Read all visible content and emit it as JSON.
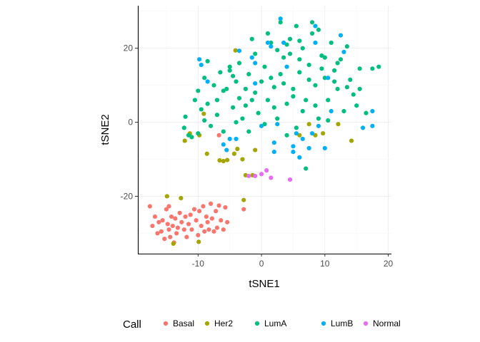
{
  "chart_data": {
    "type": "scatter",
    "xlabel": "tSNE1",
    "ylabel": "tSNE2",
    "xlim": [
      -19.5,
      20.5
    ],
    "ylim": [
      -35.5,
      31.5
    ],
    "xticks": [
      -10,
      0,
      10,
      20
    ],
    "yticks": [
      -20,
      0,
      20
    ],
    "xtick_labels": [
      "-10",
      "0",
      "10",
      "20"
    ],
    "ytick_labels": [
      "-20",
      "0",
      "20"
    ],
    "grid": true,
    "legend": {
      "title": "Call",
      "position": "bottom"
    },
    "series": [
      {
        "name": "Basal",
        "color": "#F8766D",
        "points": [
          [
            -17.6,
            -22.7
          ],
          [
            -17.2,
            -28.0
          ],
          [
            -16.8,
            -25.5
          ],
          [
            -16.4,
            -30.0
          ],
          [
            -16.2,
            -27.0
          ],
          [
            -15.8,
            -29.5
          ],
          [
            -15.6,
            -26.5
          ],
          [
            -15.3,
            -31.5
          ],
          [
            -15.0,
            -23.5
          ],
          [
            -14.8,
            -27.5
          ],
          [
            -14.6,
            -29.0
          ],
          [
            -14.6,
            -22.7
          ],
          [
            -14.4,
            -31.0
          ],
          [
            -14.2,
            -25.5
          ],
          [
            -14.0,
            -28.0
          ],
          [
            -13.8,
            -32.5
          ],
          [
            -13.6,
            -26.0
          ],
          [
            -13.4,
            -30.0
          ],
          [
            -13.2,
            -28.5
          ],
          [
            -12.9,
            -24.5
          ],
          [
            -12.6,
            -27.0
          ],
          [
            -12.2,
            -29.0
          ],
          [
            -12.0,
            -25.5
          ],
          [
            -11.8,
            -31.0
          ],
          [
            -11.5,
            -27.5
          ],
          [
            -11.2,
            -25.0
          ],
          [
            -11.0,
            -29.0
          ],
          [
            -10.6,
            -23.5
          ],
          [
            -10.3,
            -26.5
          ],
          [
            -10.0,
            -30.5
          ],
          [
            -9.8,
            -24.0
          ],
          [
            -9.5,
            -28.0
          ],
          [
            -9.2,
            -22.7
          ],
          [
            -9.0,
            -29.5
          ],
          [
            -8.7,
            -25.5
          ],
          [
            -8.5,
            -27.0
          ],
          [
            -8.3,
            -29.0
          ],
          [
            -8.0,
            -22.0
          ],
          [
            -7.8,
            -26.0
          ],
          [
            -7.5,
            -29.5
          ],
          [
            -7.2,
            -24.0
          ],
          [
            -7.0,
            -28.5
          ],
          [
            -6.7,
            -22.5
          ],
          [
            -6.4,
            -26.5
          ],
          [
            -6.0,
            -29.0
          ],
          [
            -5.7,
            -23.0
          ],
          [
            -5.4,
            -27.0
          ],
          [
            -2.8,
            -23.5
          ],
          [
            -6.7,
            -3.5
          ]
        ]
      },
      {
        "name": "Her2",
        "color": "#A3A500",
        "points": [
          [
            -14.9,
            -20.0
          ],
          [
            -13.9,
            -32.8
          ],
          [
            -12.7,
            -20.5
          ],
          [
            -9.9,
            -32.3
          ],
          [
            -2.8,
            -21.0
          ],
          [
            -12.1,
            -5.0
          ],
          [
            -9.1,
            2.3
          ],
          [
            -8.6,
            -8.5
          ],
          [
            -6.6,
            -10.3
          ],
          [
            -6.0,
            -10.5
          ],
          [
            -5.4,
            -10.2
          ],
          [
            -4.3,
            -8.5
          ],
          [
            -4.1,
            19.4
          ],
          [
            -3.8,
            -7.2
          ],
          [
            -3.0,
            -10.0
          ],
          [
            -2.5,
            -14.3
          ],
          [
            -1.4,
            -14.3
          ],
          [
            -9.8,
            -3.5
          ],
          [
            -1.0,
            -7.5
          ],
          [
            7.5,
            -0.5
          ],
          [
            8.5,
            -3.5
          ],
          [
            9.7,
            -3.0
          ],
          [
            12.1,
            -0.5
          ],
          [
            14.2,
            -5.0
          ],
          [
            6.0,
            -3.5
          ],
          [
            -11.3,
            -3.0
          ]
        ]
      },
      {
        "name": "LumA",
        "color": "#00BF7D",
        "points": [
          [
            -12.0,
            1.5
          ],
          [
            -11.5,
            -3.5
          ],
          [
            -10.5,
            6.0
          ],
          [
            -10.0,
            8.5
          ],
          [
            -9.5,
            3.5
          ],
          [
            -9.0,
            12.0
          ],
          [
            -8.5,
            16.5
          ],
          [
            -8.0,
            -1.0
          ],
          [
            -7.5,
            10.0
          ],
          [
            -7.0,
            6.0
          ],
          [
            -6.5,
            13.5
          ],
          [
            -6.0,
            -2.5
          ],
          [
            -5.5,
            9.0
          ],
          [
            -5.0,
            14.0
          ],
          [
            -4.5,
            4.0
          ],
          [
            -4.0,
            11.0
          ],
          [
            -3.5,
            16.0
          ],
          [
            -3.0,
            1.0
          ],
          [
            -2.5,
            9.0
          ],
          [
            -2.0,
            13.0
          ],
          [
            -1.5,
            6.0
          ],
          [
            -1.0,
            18.5
          ],
          [
            -0.5,
            2.5
          ],
          [
            0.0,
            11.0
          ],
          [
            0.5,
            15.0
          ],
          [
            1.0,
            6.0
          ],
          [
            1.5,
            21.5
          ],
          [
            2.0,
            9.5
          ],
          [
            2.5,
            1.0
          ],
          [
            3.0,
            13.0
          ],
          [
            3.5,
            17.5
          ],
          [
            4.0,
            5.0
          ],
          [
            4.5,
            22.5
          ],
          [
            5.0,
            9.0
          ],
          [
            5.5,
            -1.5
          ],
          [
            6.0,
            13.5
          ],
          [
            6.5,
            20.0
          ],
          [
            7.0,
            6.0
          ],
          [
            7.5,
            15.5
          ],
          [
            8.0,
            24.0
          ],
          [
            8.5,
            10.0
          ],
          [
            9.0,
            1.0
          ],
          [
            9.5,
            18.0
          ],
          [
            10.0,
            12.0
          ],
          [
            10.5,
            6.0
          ],
          [
            11.0,
            21.5
          ],
          [
            11.5,
            14.0
          ],
          [
            12.0,
            9.0
          ],
          [
            12.5,
            17.0
          ],
          [
            13.0,
            3.0
          ],
          [
            13.5,
            20.5
          ],
          [
            14.0,
            11.5
          ],
          [
            14.5,
            7.5
          ],
          [
            15.0,
            4.5
          ],
          [
            15.5,
            14.5
          ],
          [
            16.5,
            2.5
          ],
          [
            17.5,
            14.5
          ],
          [
            18.5,
            15.0
          ],
          [
            -2.0,
            -2.5
          ],
          [
            -3.5,
            6.5
          ],
          [
            0.5,
            -0.5
          ],
          [
            2.0,
            4.0
          ],
          [
            4.0,
            -3.5
          ],
          [
            6.5,
            3.0
          ],
          [
            7.0,
            -12.5
          ],
          [
            3.0,
            27.0
          ],
          [
            5.5,
            26.0
          ],
          [
            8.0,
            27.0
          ],
          [
            9.0,
            25.0
          ],
          [
            1.0,
            24.0
          ],
          [
            -1.5,
            22.5
          ],
          [
            2.5,
            19.5
          ],
          [
            4.5,
            18.5
          ],
          [
            6.0,
            17.0
          ],
          [
            10.0,
            17.5
          ],
          [
            12.0,
            16.0
          ],
          [
            -4.5,
            12.5
          ],
          [
            -2.5,
            4.5
          ],
          [
            -1.0,
            8.0
          ],
          [
            1.5,
            12.0
          ],
          [
            3.5,
            10.5
          ],
          [
            5.0,
            7.0
          ],
          [
            8.5,
            4.5
          ],
          [
            10.5,
            0.5
          ],
          [
            -7.0,
            2.0
          ],
          [
            -8.5,
            5.0
          ],
          [
            -6.0,
            8.5
          ],
          [
            -4.0,
            0.0
          ],
          [
            -5.0,
            15.0
          ],
          [
            -12.2,
            -1.5
          ],
          [
            -11.0,
            -4.0
          ],
          [
            -10.0,
            -3.0
          ],
          [
            -9.0,
            0.5
          ],
          [
            7.5,
            11.5
          ],
          [
            9.5,
            14.5
          ],
          [
            11.5,
            11.0
          ],
          [
            13.5,
            9.5
          ],
          [
            15.5,
            9.0
          ],
          [
            6.0,
            22.0
          ],
          [
            4.0,
            21.0
          ]
        ]
      },
      {
        "name": "LumB",
        "color": "#00B0F6",
        "points": [
          [
            -9.8,
            17.0
          ],
          [
            -9.5,
            15.5
          ],
          [
            -8.5,
            11.0
          ],
          [
            -6.0,
            -6.0
          ],
          [
            -5.5,
            -7.5
          ],
          [
            -5.0,
            -4.5
          ],
          [
            -4.0,
            -4.5
          ],
          [
            -3.5,
            19.3
          ],
          [
            -1.5,
            17.5
          ],
          [
            -1.0,
            10.5
          ],
          [
            0.0,
            -1.0
          ],
          [
            1.0,
            21.5
          ],
          [
            1.5,
            20.5
          ],
          [
            2.0,
            -5.5
          ],
          [
            2.0,
            -8.0
          ],
          [
            2.5,
            -0.5
          ],
          [
            3.0,
            28.0
          ],
          [
            4.0,
            15.0
          ],
          [
            5.0,
            -6.5
          ],
          [
            5.0,
            -8.0
          ],
          [
            5.5,
            -3.0
          ],
          [
            6.0,
            -9.5
          ],
          [
            6.5,
            -4.5
          ],
          [
            7.5,
            -7.0
          ],
          [
            8.0,
            -3.0
          ],
          [
            8.5,
            26.0
          ],
          [
            9.0,
            -1.0
          ],
          [
            10.0,
            -7.0
          ],
          [
            10.5,
            12.0
          ],
          [
            11.0,
            3.0
          ],
          [
            12.5,
            23.5
          ],
          [
            13.0,
            19.0
          ],
          [
            16.0,
            -1.5
          ],
          [
            17.5,
            3.0
          ],
          [
            17.5,
            -1.0
          ],
          [
            8.5,
            21.5
          ],
          [
            -1.0,
            16.0
          ],
          [
            3.5,
            21.5
          ]
        ]
      },
      {
        "name": "Normal",
        "color": "#E76BF3",
        "points": [
          [
            -1.0,
            -14.5
          ],
          [
            0.0,
            -14.0
          ],
          [
            0.8,
            -13.0
          ],
          [
            1.5,
            -15.0
          ],
          [
            4.5,
            -15.5
          ],
          [
            -2.0,
            -14.5
          ]
        ]
      }
    ]
  }
}
